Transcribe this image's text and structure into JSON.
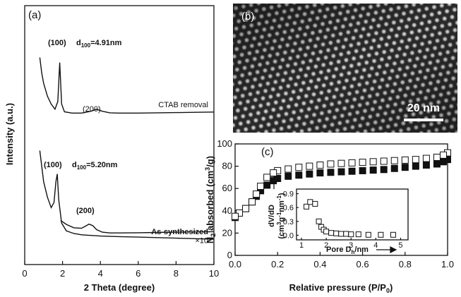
{
  "chart_data": [
    {
      "type": "line",
      "panel_label": "(a)",
      "xlabel": "2 Theta (degree)",
      "ylabel": "Intensity (a.u.)",
      "xlim": [
        0,
        10
      ],
      "xticks": [
        0,
        2,
        4,
        6,
        8,
        10
      ],
      "ylim": [
        0,
        100
      ],
      "annotations": {
        "top_100": "(100)",
        "top_d": [
          "d",
          "100",
          "=4.91nm"
        ],
        "top_200": "(200)",
        "bot_100": "(100)",
        "bot_d": [
          "d",
          "100",
          "=5.20nm"
        ],
        "bot_200": "(200)"
      },
      "series": [
        {
          "name": "CTAB removal",
          "color": "#111111",
          "x": [
            0.8,
            0.9,
            1.0,
            1.2,
            1.4,
            1.6,
            1.75,
            1.85,
            1.95,
            2.1,
            2.5,
            3.0,
            3.5,
            3.8,
            4.1,
            4.5,
            5,
            6,
            7,
            8,
            9,
            10
          ],
          "values": [
            80,
            74,
            70,
            65,
            62,
            60,
            63,
            78,
            62,
            59,
            58.5,
            58.5,
            59.2,
            60,
            59.2,
            58.6,
            58.5,
            58.5,
            58.6,
            58.7,
            58.8,
            58.9
          ]
        },
        {
          "name": "As-synthesized",
          "color": "#111111",
          "x": [
            0.8,
            0.9,
            1.0,
            1.2,
            1.4,
            1.55,
            1.65,
            1.72,
            1.8,
            1.95,
            2.2,
            2.6,
            3,
            4,
            5,
            6,
            7,
            8,
            9,
            10
          ],
          "values": [
            44,
            38,
            32,
            26,
            22,
            24,
            32,
            35,
            25,
            16,
            13,
            12,
            11.5,
            11,
            10.8,
            10.6,
            10.4,
            10.2,
            10,
            9.8
          ]
        },
        {
          "name": "×10",
          "color": "#111111",
          "x": [
            1.9,
            2.2,
            2.6,
            3.0,
            3.2,
            3.4,
            3.6,
            3.8,
            4.1,
            4.5,
            5,
            6,
            7,
            8,
            9,
            10
          ],
          "values": [
            17,
            15.5,
            14.2,
            14,
            14.8,
            15.6,
            15,
            13.5,
            12.5,
            12.2,
            12.2,
            12.3,
            12.4,
            12.5,
            12.6,
            12.7
          ]
        }
      ]
    },
    {
      "type": "scatter",
      "panel_label": "(c)",
      "xlabel": [
        "Relative pressure (P/P",
        "0",
        ")"
      ],
      "ylabel": [
        "N",
        "2",
        " absorbed (cm",
        "3",
        "/g)"
      ],
      "xlim": [
        0,
        1
      ],
      "xticks": [
        {
          "value": 0,
          "label": "0.0"
        },
        0.2,
        0.4,
        0.6,
        0.8,
        {
          "value": 1,
          "label": "1.0"
        }
      ],
      "ylim": [
        0,
        100
      ],
      "yticks": [
        0,
        20,
        40,
        60,
        80,
        100
      ],
      "series": [
        {
          "color": "#111111",
          "filled": true,
          "x": [
            0.0,
            0.02,
            0.05,
            0.08,
            0.1,
            0.12,
            0.15,
            0.18,
            0.2,
            0.25,
            0.3,
            0.35,
            0.4,
            0.45,
            0.5,
            0.55,
            0.6,
            0.65,
            0.7,
            0.75,
            0.8,
            0.85,
            0.9,
            0.95,
            0.98,
            1.0
          ],
          "values": [
            34,
            38,
            42,
            48,
            53,
            58,
            63,
            67,
            69,
            71,
            72,
            73,
            74,
            74.5,
            75,
            75.5,
            76,
            76.5,
            77,
            78,
            79,
            80,
            81,
            82,
            84,
            86
          ]
        },
        {
          "color": "#111111",
          "filled": false,
          "x": [
            1.0,
            0.98,
            0.95,
            0.9,
            0.85,
            0.8,
            0.75,
            0.7,
            0.65,
            0.6,
            0.55,
            0.5,
            0.45,
            0.4,
            0.35,
            0.3,
            0.25,
            0.2,
            0.18,
            0.15,
            0.12,
            0.1,
            0.08,
            0.05,
            0.02,
            0.0
          ],
          "values": [
            92,
            90,
            88,
            87,
            86,
            85.5,
            85,
            84.5,
            84,
            83.5,
            83,
            82.5,
            82,
            81,
            80,
            79,
            77.5,
            76,
            74,
            70,
            62,
            55,
            48,
            42,
            38,
            35
          ]
        }
      ]
    },
    {
      "type": "scatter",
      "xlabel": [
        "Pore D",
        "h",
        "/nm"
      ],
      "ylabel": [
        "dV/dD",
        "(cm",
        "3",
        "g",
        "-1",
        "nm",
        "-1",
        ")"
      ],
      "xlim": [
        0.8,
        5.3
      ],
      "xticks": [
        1,
        2,
        3,
        4,
        5
      ],
      "ylim": [
        -0.1,
        1.0
      ],
      "yticks": [
        {
          "value": 0,
          "label": "0.0"
        },
        0.3,
        0.6,
        0.9
      ],
      "series": [
        {
          "color": "#111111",
          "filled": false,
          "x": [
            1.2,
            1.35,
            1.55,
            1.7,
            1.8,
            1.9,
            2.0,
            2.2,
            2.4,
            2.6,
            2.8,
            3.0,
            3.3,
            3.7,
            4.2,
            4.7
          ],
          "values": [
            0.62,
            0.72,
            0.68,
            0.3,
            0.18,
            0.12,
            0.08,
            0.05,
            0.04,
            0.03,
            0.03,
            0.02,
            0.02,
            0.01,
            0.01,
            0.01
          ]
        }
      ]
    }
  ],
  "image_panel": {
    "label": "(b)",
    "scale_bar": "20 nm"
  }
}
